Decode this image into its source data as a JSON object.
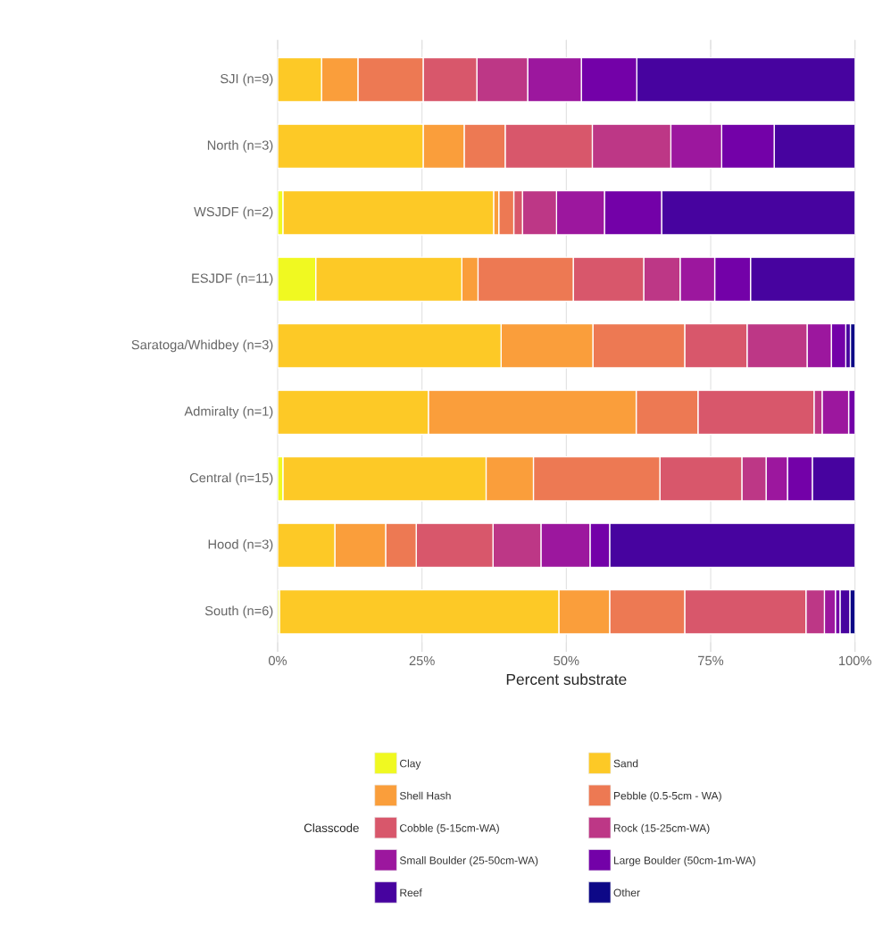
{
  "chart_data": {
    "type": "bar",
    "orientation": "horizontal",
    "stacked": true,
    "xlabel": "Percent substrate",
    "legend_title": "Classcode",
    "legend": "bottom",
    "grid": true,
    "xlim": [
      0,
      100
    ],
    "xticks": [
      {
        "value": 0,
        "label": "0%"
      },
      {
        "value": 25,
        "label": "25%"
      },
      {
        "value": 50,
        "label": "50%"
      },
      {
        "value": 75,
        "label": "75%"
      },
      {
        "value": 100,
        "label": "100%"
      }
    ],
    "categories": [
      "SJI (n=9)",
      "North (n=3)",
      "WSJDF (n=2)",
      "ESJDF (n=11)",
      "Saratoga/Whidbey (n=3)",
      "Admiralty (n=1)",
      "Central (n=15)",
      "Hood (n=3)",
      "South (n=6)"
    ],
    "series": [
      {
        "name": "Clay",
        "color": "#f0f921",
        "values": [
          0,
          0,
          0.9,
          6.6,
          0,
          0,
          0.9,
          0,
          0.3
        ]
      },
      {
        "name": "Sand",
        "color": "#fdc926",
        "values": [
          7.6,
          25.2,
          36.5,
          25.3,
          38.7,
          26.1,
          35.2,
          9.9,
          48.4
        ]
      },
      {
        "name": "Shell Hash",
        "color": "#fa9e3b",
        "values": [
          6.3,
          7.1,
          0.9,
          2.8,
          15.9,
          36.0,
          8.2,
          8.8,
          8.8
        ]
      },
      {
        "name": "Pebble (0.5-5cm - WA)",
        "color": "#ed7953",
        "values": [
          11.3,
          7.1,
          2.6,
          16.5,
          15.9,
          10.7,
          21.9,
          5.3,
          13.0
        ]
      },
      {
        "name": "Cobble (5-15cm-WA)",
        "color": "#d8576b",
        "values": [
          9.3,
          15.1,
          1.5,
          12.2,
          10.8,
          20.1,
          14.2,
          13.3,
          21.0
        ]
      },
      {
        "name": "Rock (15-25cm-WA)",
        "color": "#bd3786",
        "values": [
          8.8,
          13.6,
          5.9,
          6.3,
          10.4,
          1.4,
          4.2,
          8.3,
          3.2
        ]
      },
      {
        "name": "Small Boulder (25-50cm-WA)",
        "color": "#9c179e",
        "values": [
          9.3,
          8.8,
          8.3,
          6.0,
          4.2,
          4.6,
          3.7,
          8.5,
          1.9
        ]
      },
      {
        "name": "Large Boulder (50cm-1m-WA)",
        "color": "#7301a8",
        "values": [
          9.6,
          9.1,
          9.9,
          6.2,
          2.5,
          1.1,
          4.3,
          3.4,
          0.8
        ]
      },
      {
        "name": "Reef",
        "color": "#47039f",
        "values": [
          37.8,
          14.0,
          33.5,
          18.1,
          0.8,
          0,
          7.4,
          42.5,
          1.7
        ]
      },
      {
        "name": "Other",
        "color": "#0d0887",
        "values": [
          0,
          0,
          0,
          0,
          0.8,
          0,
          0,
          0,
          0.9
        ]
      }
    ]
  }
}
